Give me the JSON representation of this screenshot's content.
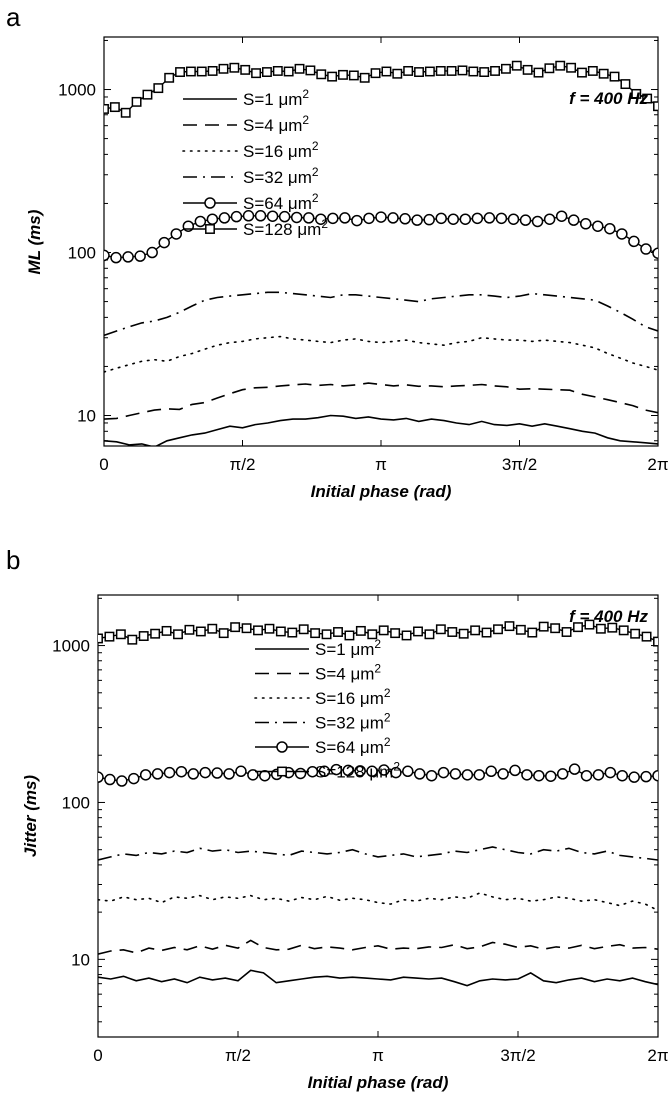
{
  "chart_data": [
    {
      "panel_label": "a",
      "type": "line",
      "xlabel": {
        "italic_a": "Initial phase (",
        "upright": "rad",
        "italic_b": ")"
      },
      "ylabel": "ML (ms)",
      "yscale": "log",
      "xlim": [
        0,
        6.2832
      ],
      "ylim": [
        6.5,
        2100
      ],
      "xticks": [
        0,
        1.5708,
        3.1416,
        4.7124,
        6.2832
      ],
      "xtick_labels": [
        "0",
        "π/2",
        "π",
        "3π/2",
        "2π"
      ],
      "yticks": [
        10,
        100,
        1000
      ],
      "ytick_labels": [
        "10",
        "100",
        "1000"
      ],
      "annotation": "f = 400 Hz",
      "legend_position": "upper-left",
      "series": [
        {
          "name": "S=1 μm",
          "unit_exp": "2",
          "style": "solid",
          "marker": "none",
          "values": [
            7,
            6.9,
            6.6,
            6.7,
            6.4,
            7,
            7.3,
            7.6,
            7.8,
            8.2,
            8.6,
            8.4,
            8.8,
            9,
            9.3,
            9.5,
            9.5,
            9.7,
            10,
            9.9,
            9.6,
            9.8,
            9.5,
            9.4,
            9.6,
            9.2,
            9.5,
            9.3,
            9,
            8.8,
            9.2,
            8.8,
            8.7,
            8.9,
            8.6,
            8.9,
            8.6,
            8.3,
            8,
            7.8,
            7.3,
            7,
            6.9,
            6.8,
            6.7
          ]
        },
        {
          "name": "S=4 μm",
          "unit_exp": "2",
          "style": "dashed",
          "marker": "none",
          "values": [
            9.5,
            9.6,
            10,
            10.4,
            10.8,
            11,
            10.9,
            11.7,
            12,
            12.8,
            13.6,
            14.4,
            14.8,
            14.9,
            15.2,
            15.4,
            15.6,
            15.3,
            15.5,
            15.2,
            15.4,
            15.8,
            15.5,
            15.2,
            15.4,
            15.1,
            15.2,
            15,
            15.2,
            15.3,
            15.5,
            15.2,
            15,
            14.5,
            14.6,
            14.5,
            14.4,
            14.3,
            13.5,
            13,
            12.5,
            12,
            11.5,
            10.8,
            10.4
          ]
        },
        {
          "name": "S=16 μm",
          "unit_exp": "2",
          "style": "dotted",
          "marker": "none",
          "values": [
            18.5,
            19.5,
            20.5,
            21.5,
            22,
            21.5,
            23,
            24,
            25.5,
            27,
            28,
            28.5,
            29.5,
            30,
            30.5,
            29.5,
            29,
            28.5,
            28,
            29,
            29.5,
            28.5,
            28,
            28.5,
            29,
            28,
            27.5,
            27,
            28,
            28.5,
            30,
            29.5,
            29,
            29,
            28.5,
            29,
            28.5,
            28,
            27,
            26,
            24,
            22.5,
            21,
            20,
            19
          ]
        },
        {
          "name": "S=32 μm",
          "unit_exp": "2",
          "style": "dashdot",
          "marker": "none",
          "values": [
            31,
            33,
            35,
            37,
            38,
            40,
            43,
            47,
            51,
            53,
            54,
            55,
            56,
            57,
            57,
            56,
            55,
            54,
            53,
            55,
            55,
            54,
            53,
            52,
            51,
            50,
            52,
            53,
            54,
            55,
            55,
            54,
            53,
            54,
            56,
            55,
            54,
            53,
            52,
            51,
            47,
            43,
            39,
            35,
            33
          ]
        },
        {
          "name": "S=64 μm",
          "unit_exp": "2",
          "style": "solid",
          "marker": "circle",
          "values": [
            96,
            93,
            94,
            95,
            100,
            115,
            130,
            145,
            155,
            160,
            163,
            166,
            168,
            168,
            167,
            166,
            164,
            163,
            160,
            162,
            163,
            157,
            162,
            165,
            163,
            161,
            158,
            159,
            162,
            160,
            160,
            162,
            163,
            162,
            160,
            158,
            155,
            160,
            167,
            158,
            150,
            145,
            140,
            130,
            117,
            105,
            99
          ]
        },
        {
          "name": "S=128 μm",
          "unit_exp": "2",
          "style": "solid",
          "marker": "square",
          "values": [
            760,
            780,
            720,
            840,
            930,
            1020,
            1180,
            1280,
            1290,
            1290,
            1300,
            1340,
            1360,
            1320,
            1260,
            1280,
            1300,
            1290,
            1340,
            1310,
            1240,
            1200,
            1230,
            1220,
            1180,
            1260,
            1290,
            1250,
            1300,
            1280,
            1290,
            1300,
            1300,
            1310,
            1290,
            1280,
            1300,
            1340,
            1400,
            1320,
            1270,
            1350,
            1400,
            1360,
            1270,
            1300,
            1250,
            1200,
            1080,
            940,
            880,
            790
          ]
        }
      ]
    },
    {
      "panel_label": "b",
      "type": "line",
      "xlabel": {
        "italic_a": "Initial phase (",
        "upright": "rad",
        "italic_b": ")"
      },
      "ylabel": "Jitter (ms)",
      "yscale": "log",
      "xlim": [
        0,
        6.2832
      ],
      "ylim": [
        3.2,
        2100
      ],
      "xticks": [
        0,
        1.5708,
        3.1416,
        4.7124,
        6.2832
      ],
      "xtick_labels": [
        "0",
        "π/2",
        "π",
        "3π/2",
        "2π"
      ],
      "yticks": [
        10,
        100,
        1000
      ],
      "ytick_labels": [
        "10",
        "100",
        "1000"
      ],
      "annotation": "f = 400 Hz",
      "legend_position": "upper-center",
      "series": [
        {
          "name": "S=1 μm",
          "unit_exp": "2",
          "style": "solid",
          "marker": "none",
          "values": [
            7.7,
            7.5,
            7.8,
            7.3,
            7.6,
            7.2,
            7.5,
            7.1,
            7.7,
            7.4,
            7.6,
            7.3,
            8.5,
            8.2,
            7.1,
            7.3,
            7.5,
            7.7,
            7.8,
            7.6,
            7.7,
            7.6,
            7.5,
            7.4,
            7.7,
            7.6,
            7.5,
            7.6,
            7.2,
            6.8,
            7.3,
            7.5,
            7.4,
            7.5,
            8.2,
            7.3,
            7.1,
            7.4,
            7.6,
            7.2,
            7.5,
            7.3,
            7.6,
            7.2,
            6.9
          ]
        },
        {
          "name": "S=4 μm",
          "unit_exp": "2",
          "style": "dashed",
          "marker": "none",
          "values": [
            10.8,
            11.3,
            11.5,
            11,
            11.8,
            11.4,
            11.9,
            11.5,
            12.2,
            11.6,
            12.3,
            11.8,
            13.2,
            11.9,
            11.5,
            11.6,
            12.3,
            11.7,
            12,
            11.8,
            11.5,
            11.9,
            12.2,
            11.6,
            11.8,
            11.7,
            12,
            11.9,
            12.4,
            11.7,
            12,
            12.8,
            12.5,
            11.9,
            12.2,
            11.6,
            12,
            11.8,
            12.3,
            11.7,
            12.1,
            12.4,
            11.8,
            11.9,
            11.6
          ]
        },
        {
          "name": "S=16 μm",
          "unit_exp": "2",
          "style": "dotted",
          "marker": "none",
          "values": [
            24,
            23.5,
            25,
            24,
            24.5,
            23,
            25,
            24.5,
            25.5,
            24,
            25,
            24.5,
            25.5,
            24,
            24.5,
            23.5,
            24.8,
            24,
            25.2,
            23.8,
            24.5,
            24,
            23,
            22.5,
            24,
            23.5,
            24.5,
            24,
            25,
            24.5,
            26.5,
            25,
            24,
            24.5,
            23.5,
            24,
            25,
            24.5,
            23.5,
            24,
            23,
            22,
            23.5,
            22.5,
            20.5
          ]
        },
        {
          "name": "S=32 μm",
          "unit_exp": "2",
          "style": "dashdot",
          "marker": "none",
          "values": [
            43,
            45,
            47,
            46,
            48,
            47,
            49,
            48,
            51,
            49,
            50,
            48,
            49,
            48,
            47,
            46,
            49,
            48,
            47,
            48,
            50,
            47,
            45,
            46,
            47,
            45,
            46,
            47,
            49,
            48,
            50,
            52,
            50,
            48,
            47,
            50,
            49,
            51,
            48,
            47,
            49,
            46,
            45,
            44,
            43
          ]
        },
        {
          "name": "S=64 μm",
          "unit_exp": "2",
          "style": "solid",
          "marker": "circle",
          "values": [
            145,
            140,
            137,
            142,
            150,
            152,
            155,
            157,
            152,
            155,
            154,
            152,
            158,
            150,
            148,
            151,
            155,
            153,
            157,
            158,
            162,
            160,
            159,
            158,
            161,
            155,
            158,
            152,
            148,
            155,
            152,
            150,
            150,
            158,
            152,
            160,
            150,
            148,
            147,
            152,
            163,
            148,
            150,
            155,
            148,
            145,
            146,
            148
          ]
        },
        {
          "name": "S=128 μm",
          "unit_exp": "2",
          "style": "solid",
          "marker": "square",
          "values": [
            1110,
            1140,
            1180,
            1090,
            1150,
            1190,
            1240,
            1180,
            1260,
            1230,
            1280,
            1200,
            1310,
            1290,
            1250,
            1280,
            1230,
            1210,
            1270,
            1200,
            1180,
            1220,
            1160,
            1240,
            1180,
            1250,
            1200,
            1160,
            1230,
            1180,
            1270,
            1220,
            1190,
            1250,
            1210,
            1270,
            1330,
            1260,
            1210,
            1320,
            1290,
            1220,
            1310,
            1360,
            1280,
            1300,
            1250,
            1190,
            1140,
            1060
          ]
        }
      ]
    }
  ]
}
